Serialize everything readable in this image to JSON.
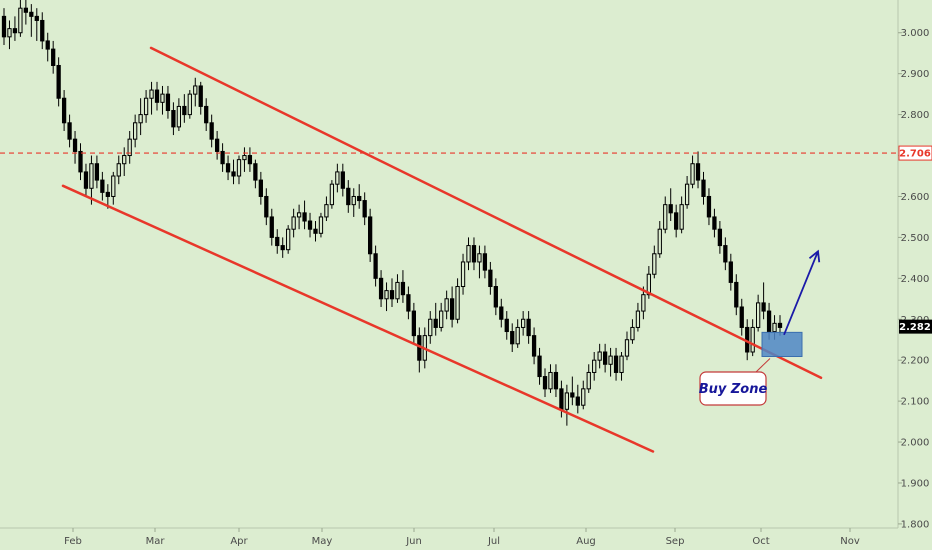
{
  "chart_data": {
    "type": "candlestick",
    "y_ticks": [
      "3.000",
      "2.900",
      "2.800",
      "2.700",
      "2.600",
      "2.500",
      "2.400",
      "2.300",
      "2.200",
      "2.100",
      "2.000",
      "1.900",
      "1.800"
    ],
    "x_ticks": [
      "Feb",
      "Mar",
      "Apr",
      "May",
      "Jun",
      "Jul",
      "Aug",
      "Sep",
      "Oct",
      "Nov"
    ],
    "ylim": [
      1.79,
      3.08
    ],
    "xlim": [
      0,
      932
    ],
    "grid": false,
    "resistance_level": {
      "value": 2.706,
      "label": "2.706"
    },
    "last_price": {
      "value": 2.282,
      "label": "2.282"
    },
    "annotation": {
      "text": "Buy Zone"
    },
    "colors": {
      "background": "#dcedd0",
      "candle": "#000000",
      "channel": "#e8372a",
      "resistance": "#e8372a",
      "zone": "#4f86c6",
      "arrow": "#1a1aa8",
      "note_border": "#c43a3a",
      "note_text": "#17179a"
    },
    "channel_lines": [
      {
        "from": {
          "x": 151,
          "y": 2.963
        },
        "to": {
          "x": 821,
          "y": 2.157
        }
      },
      {
        "from": {
          "x": 63,
          "y": 2.626
        },
        "to": {
          "x": 653,
          "y": 1.977
        }
      }
    ],
    "buy_zone": {
      "x0": 762,
      "x1": 802,
      "y_top": 2.268,
      "y_bottom": 2.209
    },
    "arrow": {
      "from": {
        "x": 784,
        "y": 2.262
      },
      "to": {
        "x": 818,
        "y": 2.466
      }
    },
    "ohlc": [
      [
        3.04,
        3.06,
        2.97,
        2.99
      ],
      [
        2.99,
        3.03,
        2.96,
        3.01
      ],
      [
        3.01,
        3.04,
        2.98,
        3.0
      ],
      [
        3.0,
        3.08,
        2.99,
        3.06
      ],
      [
        3.06,
        3.08,
        3.02,
        3.05
      ],
      [
        3.05,
        3.07,
        2.99,
        3.04
      ],
      [
        3.04,
        3.06,
        2.98,
        3.03
      ],
      [
        3.03,
        3.05,
        2.96,
        2.98
      ],
      [
        2.98,
        3.0,
        2.93,
        2.96
      ],
      [
        2.96,
        2.98,
        2.9,
        2.92
      ],
      [
        2.92,
        2.94,
        2.82,
        2.84
      ],
      [
        2.84,
        2.86,
        2.76,
        2.78
      ],
      [
        2.78,
        2.8,
        2.72,
        2.74
      ],
      [
        2.74,
        2.76,
        2.68,
        2.71
      ],
      [
        2.71,
        2.73,
        2.64,
        2.66
      ],
      [
        2.66,
        2.68,
        2.6,
        2.62
      ],
      [
        2.62,
        2.7,
        2.58,
        2.68
      ],
      [
        2.68,
        2.7,
        2.62,
        2.64
      ],
      [
        2.64,
        2.66,
        2.59,
        2.61
      ],
      [
        2.61,
        2.63,
        2.57,
        2.6
      ],
      [
        2.6,
        2.66,
        2.58,
        2.65
      ],
      [
        2.65,
        2.7,
        2.63,
        2.68
      ],
      [
        2.68,
        2.72,
        2.65,
        2.7
      ],
      [
        2.7,
        2.76,
        2.68,
        2.74
      ],
      [
        2.74,
        2.8,
        2.72,
        2.78
      ],
      [
        2.78,
        2.84,
        2.75,
        2.8
      ],
      [
        2.8,
        2.86,
        2.78,
        2.84
      ],
      [
        2.84,
        2.88,
        2.8,
        2.86
      ],
      [
        2.86,
        2.88,
        2.81,
        2.83
      ],
      [
        2.83,
        2.87,
        2.8,
        2.85
      ],
      [
        2.85,
        2.87,
        2.79,
        2.81
      ],
      [
        2.81,
        2.83,
        2.75,
        2.77
      ],
      [
        2.77,
        2.84,
        2.76,
        2.82
      ],
      [
        2.82,
        2.85,
        2.78,
        2.8
      ],
      [
        2.8,
        2.86,
        2.79,
        2.85
      ],
      [
        2.85,
        2.89,
        2.82,
        2.87
      ],
      [
        2.87,
        2.88,
        2.8,
        2.82
      ],
      [
        2.82,
        2.84,
        2.76,
        2.78
      ],
      [
        2.78,
        2.8,
        2.72,
        2.74
      ],
      [
        2.74,
        2.76,
        2.69,
        2.71
      ],
      [
        2.71,
        2.73,
        2.66,
        2.68
      ],
      [
        2.68,
        2.7,
        2.64,
        2.66
      ],
      [
        2.66,
        2.69,
        2.63,
        2.65
      ],
      [
        2.65,
        2.7,
        2.63,
        2.69
      ],
      [
        2.69,
        2.72,
        2.66,
        2.7
      ],
      [
        2.7,
        2.72,
        2.66,
        2.68
      ],
      [
        2.68,
        2.69,
        2.62,
        2.64
      ],
      [
        2.64,
        2.66,
        2.58,
        2.6
      ],
      [
        2.6,
        2.62,
        2.53,
        2.55
      ],
      [
        2.55,
        2.57,
        2.48,
        2.5
      ],
      [
        2.5,
        2.52,
        2.46,
        2.48
      ],
      [
        2.48,
        2.5,
        2.45,
        2.47
      ],
      [
        2.47,
        2.53,
        2.46,
        2.52
      ],
      [
        2.52,
        2.57,
        2.5,
        2.55
      ],
      [
        2.55,
        2.58,
        2.52,
        2.56
      ],
      [
        2.56,
        2.59,
        2.52,
        2.54
      ],
      [
        2.54,
        2.56,
        2.5,
        2.52
      ],
      [
        2.52,
        2.54,
        2.49,
        2.51
      ],
      [
        2.51,
        2.56,
        2.5,
        2.55
      ],
      [
        2.55,
        2.6,
        2.54,
        2.58
      ],
      [
        2.58,
        2.64,
        2.57,
        2.63
      ],
      [
        2.63,
        2.68,
        2.61,
        2.66
      ],
      [
        2.66,
        2.68,
        2.6,
        2.62
      ],
      [
        2.62,
        2.64,
        2.56,
        2.58
      ],
      [
        2.58,
        2.62,
        2.55,
        2.6
      ],
      [
        2.6,
        2.63,
        2.57,
        2.59
      ],
      [
        2.59,
        2.61,
        2.53,
        2.55
      ],
      [
        2.55,
        2.57,
        2.44,
        2.46
      ],
      [
        2.46,
        2.48,
        2.38,
        2.4
      ],
      [
        2.4,
        2.42,
        2.33,
        2.35
      ],
      [
        2.35,
        2.39,
        2.32,
        2.37
      ],
      [
        2.37,
        2.4,
        2.33,
        2.35
      ],
      [
        2.35,
        2.41,
        2.34,
        2.39
      ],
      [
        2.39,
        2.42,
        2.34,
        2.36
      ],
      [
        2.36,
        2.38,
        2.3,
        2.32
      ],
      [
        2.32,
        2.34,
        2.24,
        2.26
      ],
      [
        2.26,
        2.28,
        2.17,
        2.2
      ],
      [
        2.2,
        2.28,
        2.18,
        2.26
      ],
      [
        2.26,
        2.32,
        2.24,
        2.3
      ],
      [
        2.3,
        2.34,
        2.26,
        2.28
      ],
      [
        2.28,
        2.34,
        2.27,
        2.32
      ],
      [
        2.32,
        2.37,
        2.3,
        2.35
      ],
      [
        2.35,
        2.38,
        2.28,
        2.3
      ],
      [
        2.3,
        2.4,
        2.29,
        2.38
      ],
      [
        2.38,
        2.46,
        2.36,
        2.44
      ],
      [
        2.44,
        2.5,
        2.42,
        2.48
      ],
      [
        2.48,
        2.5,
        2.42,
        2.44
      ],
      [
        2.44,
        2.48,
        2.4,
        2.46
      ],
      [
        2.46,
        2.48,
        2.4,
        2.42
      ],
      [
        2.42,
        2.44,
        2.36,
        2.38
      ],
      [
        2.38,
        2.4,
        2.31,
        2.33
      ],
      [
        2.33,
        2.35,
        2.28,
        2.3
      ],
      [
        2.3,
        2.32,
        2.25,
        2.27
      ],
      [
        2.27,
        2.29,
        2.22,
        2.24
      ],
      [
        2.24,
        2.3,
        2.23,
        2.28
      ],
      [
        2.28,
        2.32,
        2.26,
        2.3
      ],
      [
        2.3,
        2.32,
        2.24,
        2.26
      ],
      [
        2.26,
        2.28,
        2.19,
        2.21
      ],
      [
        2.21,
        2.23,
        2.14,
        2.16
      ],
      [
        2.16,
        2.18,
        2.11,
        2.13
      ],
      [
        2.13,
        2.19,
        2.12,
        2.17
      ],
      [
        2.17,
        2.19,
        2.11,
        2.13
      ],
      [
        2.13,
        2.15,
        2.06,
        2.08
      ],
      [
        2.08,
        2.14,
        2.04,
        2.12
      ],
      [
        2.12,
        2.16,
        2.09,
        2.11
      ],
      [
        2.11,
        2.14,
        2.07,
        2.09
      ],
      [
        2.09,
        2.15,
        2.08,
        2.13
      ],
      [
        2.13,
        2.19,
        2.12,
        2.17
      ],
      [
        2.17,
        2.22,
        2.15,
        2.2
      ],
      [
        2.2,
        2.24,
        2.18,
        2.22
      ],
      [
        2.22,
        2.24,
        2.17,
        2.19
      ],
      [
        2.19,
        2.23,
        2.16,
        2.21
      ],
      [
        2.21,
        2.23,
        2.15,
        2.17
      ],
      [
        2.17,
        2.22,
        2.15,
        2.21
      ],
      [
        2.21,
        2.27,
        2.2,
        2.25
      ],
      [
        2.25,
        2.3,
        2.24,
        2.28
      ],
      [
        2.28,
        2.34,
        2.27,
        2.32
      ],
      [
        2.32,
        2.38,
        2.3,
        2.36
      ],
      [
        2.36,
        2.43,
        2.35,
        2.41
      ],
      [
        2.41,
        2.48,
        2.4,
        2.46
      ],
      [
        2.46,
        2.54,
        2.45,
        2.52
      ],
      [
        2.52,
        2.6,
        2.51,
        2.58
      ],
      [
        2.58,
        2.62,
        2.54,
        2.56
      ],
      [
        2.56,
        2.58,
        2.5,
        2.52
      ],
      [
        2.52,
        2.6,
        2.51,
        2.58
      ],
      [
        2.58,
        2.65,
        2.57,
        2.63
      ],
      [
        2.63,
        2.7,
        2.62,
        2.68
      ],
      [
        2.68,
        2.71,
        2.62,
        2.64
      ],
      [
        2.64,
        2.66,
        2.58,
        2.6
      ],
      [
        2.6,
        2.62,
        2.53,
        2.55
      ],
      [
        2.55,
        2.57,
        2.5,
        2.52
      ],
      [
        2.52,
        2.54,
        2.46,
        2.48
      ],
      [
        2.48,
        2.5,
        2.42,
        2.44
      ],
      [
        2.44,
        2.46,
        2.37,
        2.39
      ],
      [
        2.39,
        2.41,
        2.31,
        2.33
      ],
      [
        2.33,
        2.35,
        2.26,
        2.28
      ],
      [
        2.28,
        2.3,
        2.2,
        2.22
      ],
      [
        2.22,
        2.3,
        2.21,
        2.28
      ],
      [
        2.28,
        2.36,
        2.27,
        2.34
      ],
      [
        2.34,
        2.39,
        2.3,
        2.32
      ],
      [
        2.32,
        2.34,
        2.25,
        2.27
      ],
      [
        2.27,
        2.31,
        2.25,
        2.29
      ],
      [
        2.29,
        2.31,
        2.26,
        2.28
      ]
    ]
  }
}
